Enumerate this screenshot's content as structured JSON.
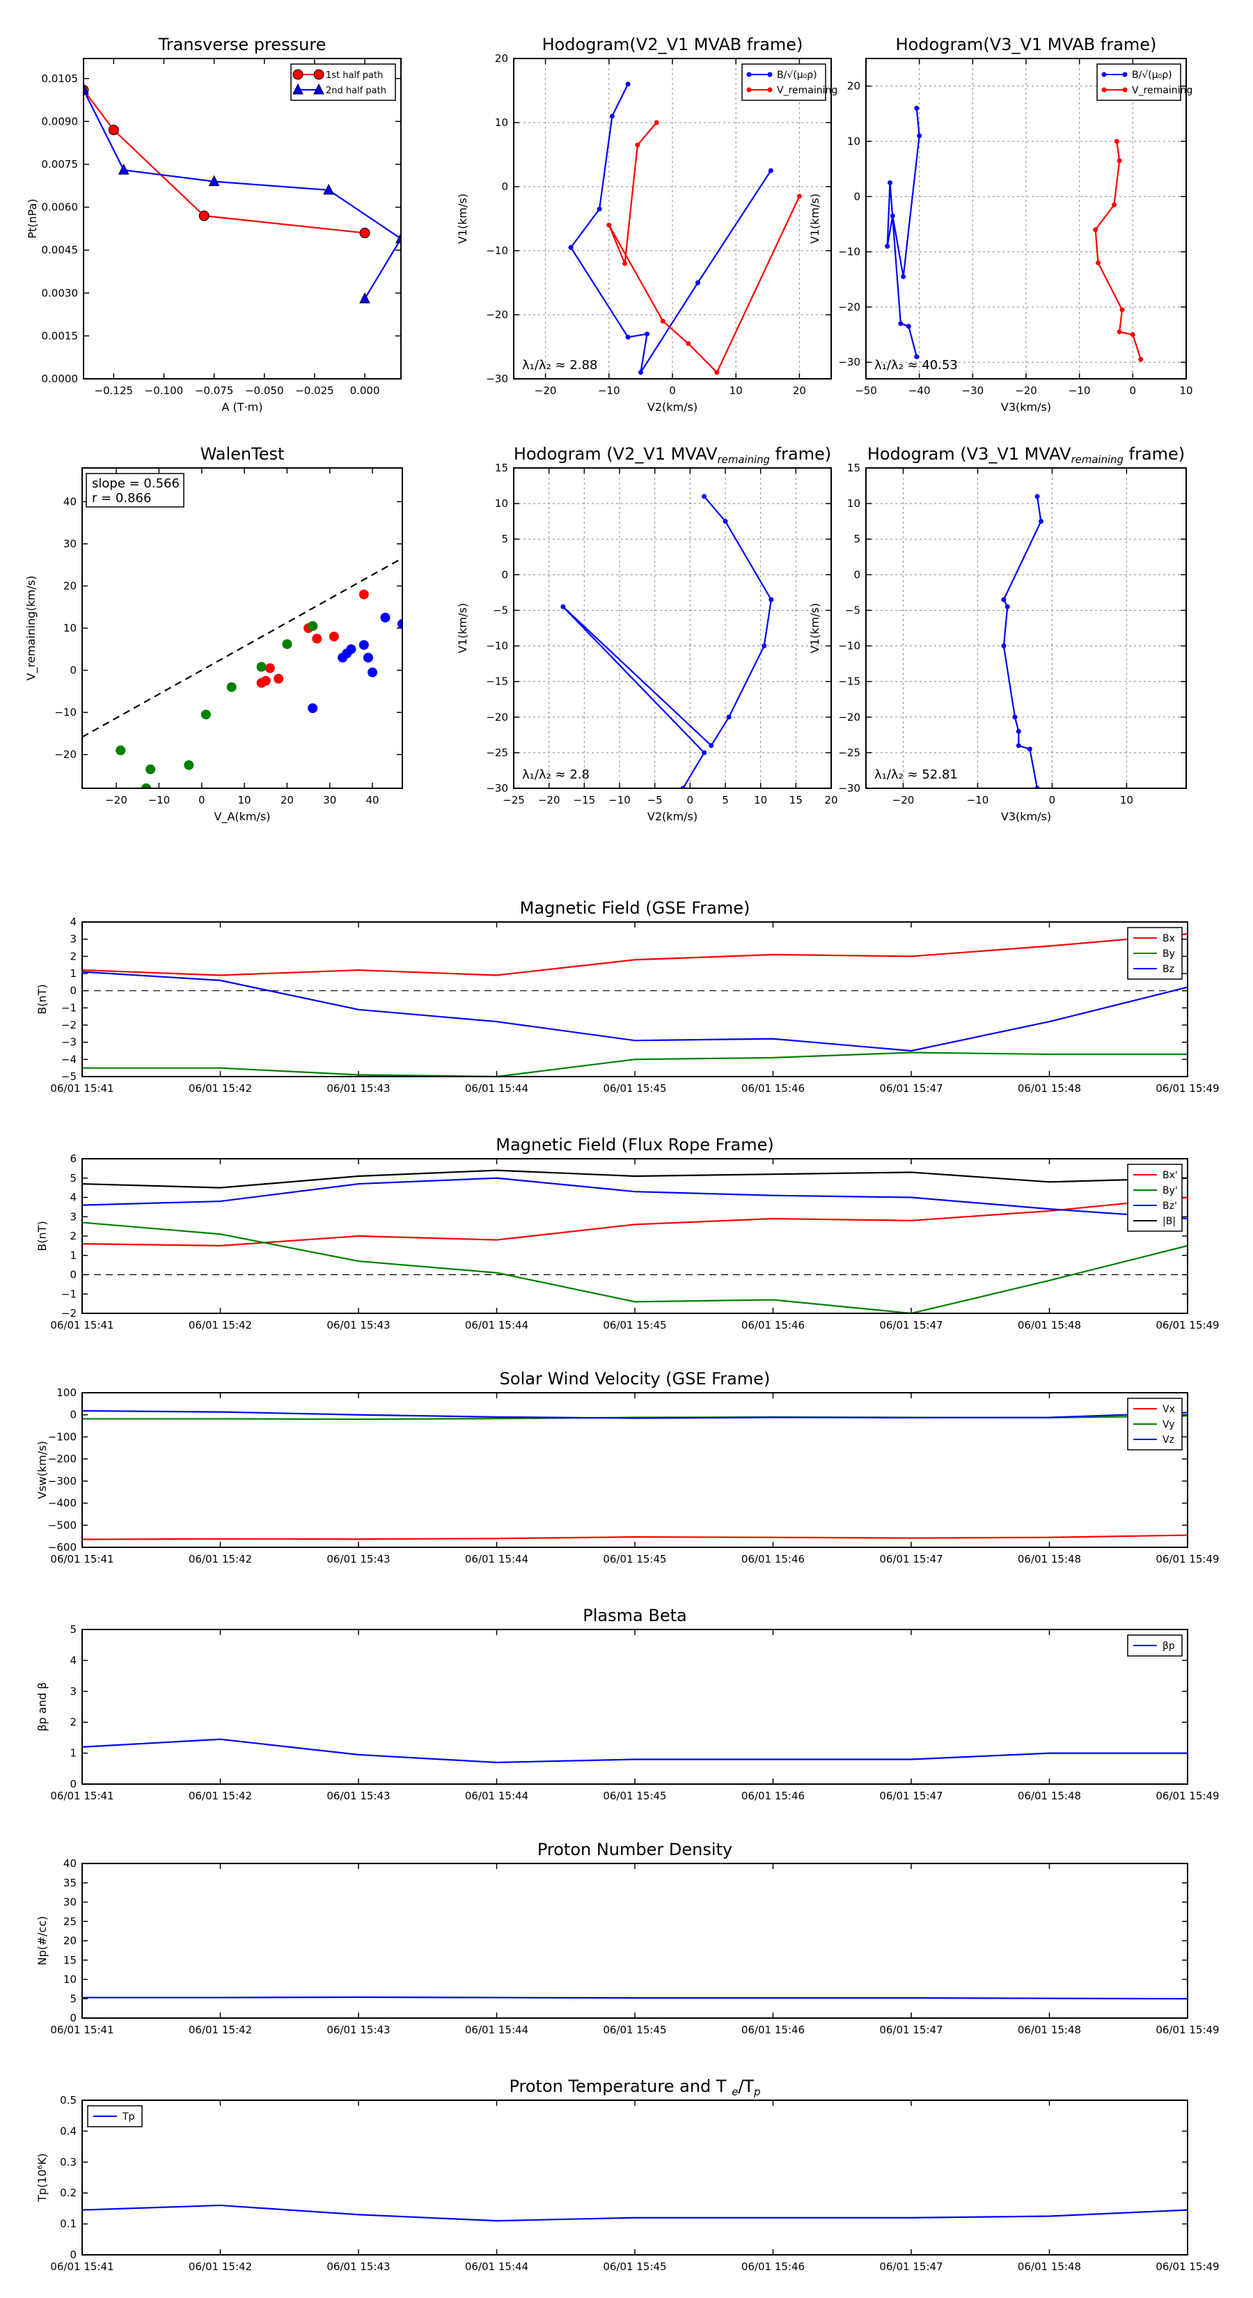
{
  "colors": {
    "red": "#ff0000",
    "green": "#008000",
    "blue": "#0000ff",
    "black": "#000000",
    "grid": "#888888"
  },
  "chart_data": [
    {
      "id": "transverse-pressure",
      "type": "line",
      "title": "Transverse pressure",
      "xlabel": "A (T·m)",
      "ylabel": "Pt(nPa)",
      "xlim": [
        -0.14,
        0.018
      ],
      "ylim": [
        0,
        0.0112
      ],
      "xticks": [
        -0.125,
        -0.1,
        -0.075,
        -0.05,
        -0.025,
        0.0
      ],
      "xtick_labels": [
        "−0.125",
        "−0.100",
        "−0.075",
        "−0.050",
        "−0.025",
        "0.000"
      ],
      "yticks": [
        0,
        0.0015,
        0.003,
        0.0045,
        0.006,
        0.0075,
        0.009,
        0.0105
      ],
      "ytick_labels": [
        "0.0000",
        "0.0015",
        "0.0030",
        "0.0045",
        "0.0060",
        "0.0075",
        "0.0090",
        "0.0105"
      ],
      "grid": false,
      "legend": {
        "position": "top-right",
        "framed": true
      },
      "series": [
        {
          "name": "1st half path",
          "color": "red",
          "marker": "circle",
          "x": [
            -0.14,
            -0.125,
            -0.08,
            0.0
          ],
          "y": [
            0.0101,
            0.0087,
            0.0057,
            0.0051
          ]
        },
        {
          "name": "2nd half path",
          "color": "blue",
          "marker": "triangle",
          "x": [
            -0.14,
            -0.12,
            -0.075,
            -0.018,
            0.018,
            0.0
          ],
          "y": [
            0.0101,
            0.0073,
            0.0069,
            0.0066,
            0.0049,
            0.0028
          ]
        }
      ]
    },
    {
      "id": "hodogram-v2v1-mvab",
      "type": "line",
      "title": "Hodogram(V2_V1 MVAB frame)",
      "xlabel": "V2(km/s)",
      "ylabel": "V1(km/s)",
      "xlim": [
        -25,
        25
      ],
      "ylim": [
        -30,
        20
      ],
      "xticks": [
        -20,
        -10,
        0,
        10,
        20
      ],
      "yticks": [
        -30,
        -20,
        -10,
        0,
        10,
        20
      ],
      "grid": true,
      "legend": {
        "position": "top-right",
        "framed": true
      },
      "annotation": "λ₁/λ₂ ≈ 2.88",
      "series": [
        {
          "name": "B/√(μ₀ρ)",
          "color": "blue",
          "marker": "dot",
          "x": [
            -7,
            -9.5,
            -11.5,
            -16,
            -7,
            -4,
            -5,
            4,
            15.5
          ],
          "y": [
            16,
            11,
            -3.5,
            -9.5,
            -23.5,
            -23,
            -29,
            -15,
            2.5
          ]
        },
        {
          "name": "V_remaining",
          "color": "red",
          "marker": "dot",
          "x": [
            -2.5,
            -5.5,
            -7.5,
            -10,
            -1.5,
            2.5,
            7,
            20
          ],
          "y": [
            10,
            6.5,
            -12,
            -6,
            -21,
            -24.5,
            -29,
            -1.5
          ]
        }
      ]
    },
    {
      "id": "hodogram-v3v1-mvab",
      "type": "line",
      "title": "Hodogram(V3_V1 MVAB frame)",
      "xlabel": "V3(km/s)",
      "ylabel": "V1(km/s)",
      "xlim": [
        -50,
        10
      ],
      "ylim": [
        -33,
        25
      ],
      "xticks": [
        -50,
        -40,
        -30,
        -20,
        -10,
        0,
        10
      ],
      "yticks": [
        -30,
        -20,
        -10,
        0,
        10,
        20
      ],
      "grid": true,
      "legend": {
        "position": "top-right",
        "framed": true
      },
      "annotation": "λ₁/λ₂ ≈ 40.53",
      "series": [
        {
          "name": "B/√(μ₀ρ)",
          "color": "blue",
          "marker": "dot",
          "x": [
            -40.5,
            -40,
            -43,
            -45,
            -46,
            -45.5,
            -43.5,
            -42,
            -40.5
          ],
          "y": [
            16,
            11,
            -14.5,
            -3.5,
            -9,
            2.5,
            -23,
            -23.5,
            -29
          ]
        },
        {
          "name": "V_remaining",
          "color": "red",
          "marker": "dot",
          "x": [
            -3,
            -2.5,
            -3.5,
            -7,
            -6.5,
            -2,
            -2.5,
            0,
            1.5
          ],
          "y": [
            10,
            6.5,
            -1.5,
            -6,
            -12,
            -20.5,
            -24.5,
            -25,
            -29.5
          ]
        }
      ]
    },
    {
      "id": "walen-test",
      "type": "scatter",
      "title": "WalenTest",
      "xlabel": "V_A(km/s)",
      "ylabel": "V_remaining(km/s)",
      "xlim": [
        -28,
        47
      ],
      "ylim": [
        -28,
        48
      ],
      "xticks": [
        -20,
        -10,
        0,
        10,
        20,
        30,
        40
      ],
      "yticks": [
        -20,
        -10,
        0,
        10,
        20,
        30,
        40
      ],
      "grid": false,
      "annotation_lines": [
        "slope = 0.566",
        "r = 0.866"
      ],
      "fit_line": {
        "slope": 0.566,
        "x": [
          -28,
          47
        ]
      },
      "series": [
        {
          "name": "red",
          "color": "red",
          "x": [
            38,
            26,
            27,
            31,
            16,
            14,
            18,
            15,
            25
          ],
          "y": [
            18,
            10.5,
            7.5,
            8,
            0.5,
            -3,
            -2,
            -2.5,
            10
          ]
        },
        {
          "name": "green",
          "color": "green",
          "x": [
            -19,
            -12,
            1,
            7,
            14,
            20,
            26,
            -3,
            -13
          ],
          "y": [
            -19,
            -23.5,
            -10.5,
            -4,
            0.8,
            6.2,
            10.5,
            -22.5,
            -28
          ]
        },
        {
          "name": "blue",
          "color": "blue",
          "x": [
            43,
            35,
            33,
            38,
            39,
            40,
            47,
            26,
            34
          ],
          "y": [
            12.5,
            5,
            3,
            6,
            3,
            -0.5,
            11,
            -9,
            4
          ]
        }
      ]
    },
    {
      "id": "hodogram-v2v1-mvav",
      "type": "line",
      "title": "Hodogram (V2_V1 MVAV",
      "title_sub": "remaining",
      "title_end": " frame)",
      "xlabel": "V2(km/s)",
      "ylabel": "V1(km/s)",
      "xlim": [
        -25,
        20
      ],
      "ylim": [
        -30,
        15
      ],
      "xticks": [
        -25,
        -20,
        -15,
        -10,
        -5,
        0,
        5,
        10,
        15,
        20
      ],
      "yticks": [
        -30,
        -25,
        -20,
        -15,
        -10,
        -5,
        0,
        5,
        10,
        15
      ],
      "grid": true,
      "annotation": "λ₁/λ₂ ≈ 2.8",
      "series": [
        {
          "name": "V_remaining",
          "color": "blue",
          "marker": "dot",
          "x": [
            2,
            5,
            11.5,
            10.5,
            5.5,
            3,
            -18,
            2,
            -1
          ],
          "y": [
            11,
            7.5,
            -3.5,
            -10,
            -20,
            -24,
            -4.5,
            -25,
            -30
          ]
        }
      ]
    },
    {
      "id": "hodogram-v3v1-mvav",
      "type": "line",
      "title": "Hodogram (V3_V1 MVAV",
      "title_sub": "remaining",
      "title_end": " frame)",
      "xlabel": "V3(km/s)",
      "ylabel": "V1(km/s)",
      "xlim": [
        -25,
        18
      ],
      "ylim": [
        -30,
        15
      ],
      "xticks": [
        -20,
        -10,
        0,
        10
      ],
      "yticks": [
        -30,
        -25,
        -20,
        -15,
        -10,
        -5,
        0,
        5,
        10,
        15
      ],
      "grid": true,
      "annotation": "λ₁/λ₂ ≈ 52.81",
      "series": [
        {
          "name": "V_remaining",
          "color": "blue",
          "marker": "dot",
          "x": [
            -2,
            -1.5,
            -6.5,
            -6,
            -6.5,
            -5,
            -4.5,
            -4.5,
            -3,
            -2
          ],
          "y": [
            11,
            7.5,
            -3.5,
            -4.5,
            -10,
            -20,
            -22,
            -24,
            -24.5,
            -30
          ]
        }
      ]
    },
    {
      "id": "magnetic-field-gse",
      "type": "line",
      "title": "Magnetic Field (GSE Frame)",
      "xlabel": "",
      "ylabel": "B(nT)",
      "ylim": [
        -5,
        4
      ],
      "yticks": [
        -5,
        -4,
        -3,
        -2,
        -1,
        0,
        1,
        2,
        3,
        4
      ],
      "zero_line": true,
      "legend": {
        "position": "top-right",
        "framed": true
      },
      "series": [
        {
          "name": "Bx",
          "color": "red",
          "values": [
            1.2,
            0.9,
            1.2,
            0.9,
            1.8,
            2.1,
            2.0,
            2.6,
            3.3
          ]
        },
        {
          "name": "By",
          "color": "green",
          "values": [
            -4.5,
            -4.5,
            -4.9,
            -5.0,
            -4.0,
            -3.9,
            -3.6,
            -3.7,
            -3.7
          ]
        },
        {
          "name": "Bz",
          "color": "blue",
          "values": [
            1.1,
            0.6,
            -1.1,
            -1.8,
            -2.9,
            -2.8,
            -3.5,
            -1.8,
            0.2
          ]
        }
      ]
    },
    {
      "id": "magnetic-field-flux-rope",
      "type": "line",
      "title": "Magnetic Field (Flux Rope Frame)",
      "xlabel": "",
      "ylabel": "B(nT)",
      "ylim": [
        -2,
        6
      ],
      "yticks": [
        -2,
        -1,
        0,
        1,
        2,
        3,
        4,
        5,
        6
      ],
      "zero_line": true,
      "legend": {
        "position": "top-right",
        "framed": true
      },
      "series": [
        {
          "name": "Bx'",
          "color": "red",
          "values": [
            1.6,
            1.5,
            2.0,
            1.8,
            2.6,
            2.9,
            2.8,
            3.3,
            4.0
          ]
        },
        {
          "name": "By'",
          "color": "green",
          "values": [
            2.7,
            2.1,
            0.7,
            0.1,
            -1.4,
            -1.3,
            -2.0,
            -0.3,
            1.5
          ]
        },
        {
          "name": "Bz'",
          "color": "blue",
          "values": [
            3.6,
            3.8,
            4.7,
            5.0,
            4.3,
            4.1,
            4.0,
            3.4,
            2.9
          ]
        },
        {
          "name": "|B|",
          "color": "black",
          "values": [
            4.7,
            4.5,
            5.1,
            5.4,
            5.1,
            5.2,
            5.3,
            4.8,
            5.0
          ]
        }
      ]
    },
    {
      "id": "solar-wind-velocity",
      "type": "line",
      "title": "Solar Wind Velocity (GSE Frame)",
      "xlabel": "",
      "ylabel": "Vsw(km/s)",
      "ylim": [
        -600,
        100
      ],
      "yticks": [
        -600,
        -500,
        -400,
        -300,
        -200,
        -100,
        0,
        100
      ],
      "legend": {
        "position": "top-right",
        "framed": true
      },
      "series": [
        {
          "name": "Vx",
          "color": "red",
          "values": [
            -564,
            -562,
            -563,
            -560,
            -553,
            -555,
            -558,
            -555,
            -545
          ]
        },
        {
          "name": "Vy",
          "color": "green",
          "values": [
            -18,
            -18,
            -20,
            -17,
            -12,
            -10,
            -12,
            -13,
            -5
          ]
        },
        {
          "name": "Vz",
          "color": "blue",
          "values": [
            18,
            13,
            0,
            -10,
            -15,
            -12,
            -13,
            -12,
            10
          ]
        }
      ]
    },
    {
      "id": "plasma-beta",
      "type": "line",
      "title": "Plasma Beta",
      "xlabel": "",
      "ylabel": "βp and β",
      "ylim": [
        0,
        5
      ],
      "yticks": [
        0,
        1,
        2,
        3,
        4,
        5
      ],
      "legend": {
        "position": "top-right",
        "framed": true
      },
      "series": [
        {
          "name": "βp",
          "color": "blue",
          "values": [
            1.2,
            1.45,
            0.95,
            0.7,
            0.8,
            0.8,
            0.8,
            1.0,
            1.0
          ]
        }
      ]
    },
    {
      "id": "proton-number-density",
      "type": "line",
      "title": "Proton Number Density",
      "xlabel": "",
      "ylabel": "Np(#/cc)",
      "ylim": [
        0,
        40
      ],
      "yticks": [
        0,
        5,
        10,
        15,
        20,
        25,
        30,
        35,
        40
      ],
      "series": [
        {
          "name": "Np",
          "color": "blue",
          "values": [
            5.3,
            5.3,
            5.4,
            5.3,
            5.2,
            5.2,
            5.2,
            5.1,
            5.0
          ]
        }
      ]
    },
    {
      "id": "proton-temperature",
      "type": "line",
      "title": "Proton Temperature and T",
      "title_sub": "e",
      "title_mid": "/T",
      "title_sub2": "p",
      "xlabel": "",
      "ylabel": "Tp(10⁶K)",
      "ylim": [
        0,
        0.5
      ],
      "yticks": [
        0,
        0.1,
        0.2,
        0.3,
        0.4,
        0.5
      ],
      "legend": {
        "position": "top-left",
        "framed": true
      },
      "series": [
        {
          "name": "Tp",
          "color": "blue",
          "values": [
            0.145,
            0.16,
            0.13,
            0.11,
            0.12,
            0.12,
            0.12,
            0.125,
            0.145
          ]
        }
      ]
    }
  ],
  "time_axis": {
    "labels": [
      "06/01 15:41",
      "06/01 15:42",
      "06/01 15:43",
      "06/01 15:44",
      "06/01 15:45",
      "06/01 15:46",
      "06/01 15:47",
      "06/01 15:48",
      "06/01 15:49"
    ]
  }
}
